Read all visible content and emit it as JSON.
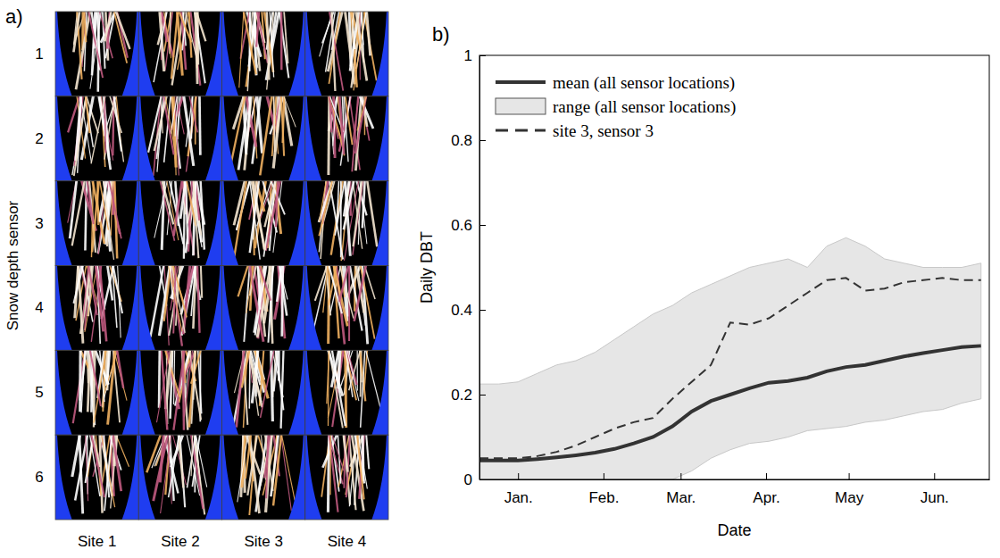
{
  "chart_data": [
    {
      "type": "image_grid",
      "panel_label": "a)",
      "ylabel": "Snow depth sensor",
      "row_labels": [
        "1",
        "2",
        "3",
        "4",
        "5",
        "6"
      ],
      "col_labels": [
        "Site 1",
        "Site 2",
        "Site 3",
        "Site 4"
      ]
    },
    {
      "type": "line",
      "panel_label": "b)",
      "xlabel": "Date",
      "ylabel": "Daily DBT",
      "x": [
        -13,
        -6,
        1,
        8,
        15,
        22,
        29,
        36,
        43,
        50,
        57,
        64,
        71,
        78,
        85,
        92,
        99,
        106,
        113,
        120,
        127,
        134,
        141,
        148,
        155,
        162,
        169
      ],
      "xlim": [
        -13,
        172
      ],
      "xticks": [
        {
          "value": 1,
          "label": "Jan."
        },
        {
          "value": 32,
          "label": "Feb."
        },
        {
          "value": 60,
          "label": "Mar."
        },
        {
          "value": 91,
          "label": "Apr."
        },
        {
          "value": 121,
          "label": "May"
        },
        {
          "value": 152,
          "label": "Jun."
        }
      ],
      "ylim": [
        0,
        1
      ],
      "yticks": [
        0,
        0.2,
        0.4,
        0.6,
        0.8,
        1
      ],
      "grid": false,
      "legend": "upper left",
      "series": [
        {
          "name": "mean (all sensor locations)",
          "type": "line",
          "line_style": "solid",
          "color": "#333333",
          "values": [
            0.045,
            0.045,
            0.045,
            0.048,
            0.052,
            0.057,
            0.063,
            0.072,
            0.085,
            0.1,
            0.125,
            0.16,
            0.185,
            0.2,
            0.215,
            0.228,
            0.232,
            0.24,
            0.255,
            0.265,
            0.27,
            0.28,
            0.29,
            0.298,
            0.305,
            0.312,
            0.315
          ]
        },
        {
          "name": "range (all sensor locations)",
          "type": "area",
          "color": "#e6e6e6",
          "lower": [
            0,
            0,
            0,
            0,
            0,
            0,
            0,
            0,
            0,
            0,
            0,
            0.02,
            0.05,
            0.07,
            0.085,
            0.09,
            0.1,
            0.115,
            0.12,
            0.125,
            0.135,
            0.14,
            0.15,
            0.16,
            0.165,
            0.18,
            0.19
          ],
          "upper": [
            0.225,
            0.225,
            0.23,
            0.25,
            0.27,
            0.28,
            0.3,
            0.33,
            0.36,
            0.39,
            0.41,
            0.44,
            0.46,
            0.48,
            0.5,
            0.51,
            0.52,
            0.5,
            0.55,
            0.57,
            0.55,
            0.52,
            0.51,
            0.5,
            0.5,
            0.5,
            0.51
          ]
        },
        {
          "name": "site 3, sensor 3",
          "type": "line",
          "line_style": "dashed",
          "color": "#333333",
          "values": [
            0.05,
            0.05,
            0.05,
            0.055,
            0.065,
            0.08,
            0.1,
            0.12,
            0.135,
            0.145,
            0.19,
            0.23,
            0.27,
            0.37,
            0.365,
            0.38,
            0.41,
            0.44,
            0.47,
            0.475,
            0.445,
            0.45,
            0.465,
            0.47,
            0.475,
            0.47,
            0.47
          ]
        }
      ]
    }
  ]
}
